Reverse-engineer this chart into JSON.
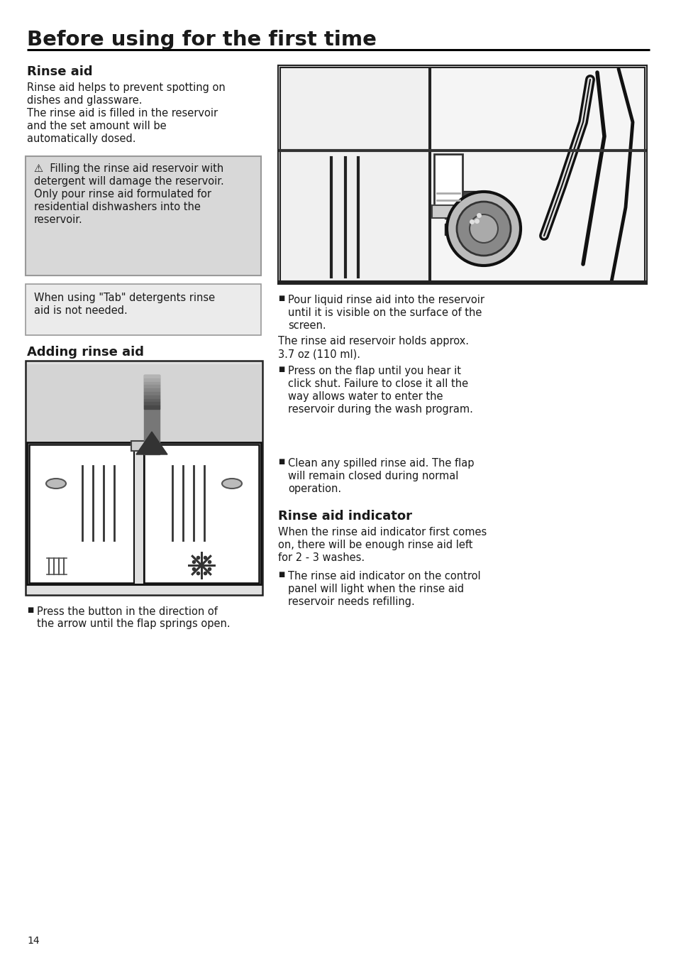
{
  "page_title": "Before using for the first time",
  "section1_title": "Rinse aid",
  "s1_lines": [
    "Rinse aid helps to prevent spotting on",
    "dishes and glassware.",
    "The rinse aid is filled in the reservoir",
    "and the set amount will be",
    "automatically dosed."
  ],
  "warn_lines": [
    "⚠  Filling the rinse aid reservoir with",
    "detergent will damage the reservoir.",
    "Only pour rinse aid formulated for",
    "residential dishwashers into the",
    "reservoir."
  ],
  "tab_lines": [
    "When using \"Tab\" detergents rinse",
    "aid is not needed."
  ],
  "section2_title": "Adding rinse aid",
  "bullet_left_lines": [
    "Press the button in the direction of",
    "the arrow until the flap springs open."
  ],
  "b1_lines": [
    "Pour liquid rinse aid into the reservoir",
    "until it is visible on the surface of the",
    "screen."
  ],
  "res_lines": [
    "The rinse aid reservoir holds approx.",
    "3.7 oz (110 ml)."
  ],
  "b2_lines": [
    "Press on the flap until you hear it",
    "click shut. Failure to close it all the",
    "way allows water to enter the",
    "reservoir during the wash program."
  ],
  "b3_lines": [
    "Clean any spilled rinse aid. The flap",
    "will remain closed during normal",
    "operation."
  ],
  "section3_title": "Rinse aid indicator",
  "s3_lines": [
    "When the rinse aid indicator first comes",
    "on, there will be enough rinse aid left",
    "for 2 - 3 washes."
  ],
  "b4_lines": [
    "The rinse aid indicator on the control",
    "panel will light when the rinse aid",
    "reservoir needs refilling."
  ],
  "page_number": "14",
  "bg": "#ffffff",
  "tc": "#1a1a1a",
  "warn_bg": "#d8d8d8",
  "tab_bg": "#ebebeb",
  "box_border": "#999999",
  "img_border": "#222222"
}
